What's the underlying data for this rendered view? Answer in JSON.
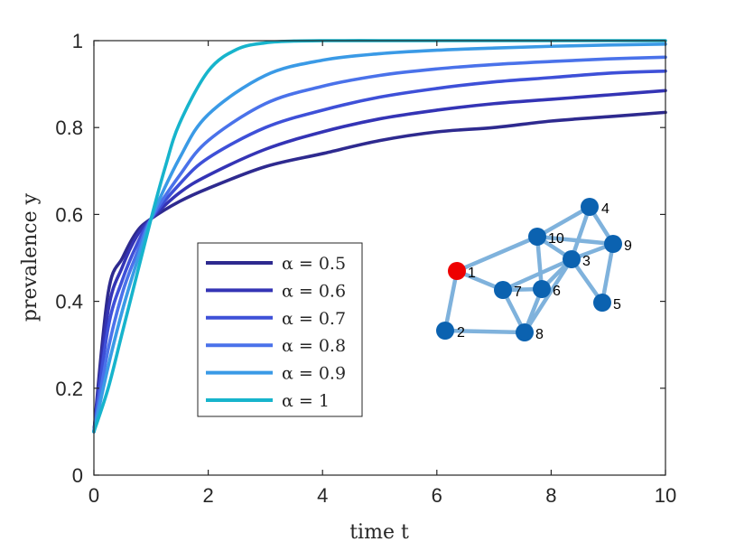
{
  "chart_data": {
    "type": "line",
    "xlabel": "time t",
    "ylabel": "prevalence y",
    "xlim": [
      0,
      10
    ],
    "ylim": [
      0,
      1
    ],
    "xticks": [
      "0",
      "2",
      "4",
      "6",
      "8",
      "10"
    ],
    "yticks": [
      "0",
      "0.2",
      "0.4",
      "0.6",
      "0.8",
      "1"
    ],
    "grid": false,
    "legend_position": "center-left",
    "series": [
      {
        "name": "α = 0.5",
        "color": "#2e2a8f",
        "x": [
          0,
          0.25,
          0.5,
          0.75,
          1,
          1.5,
          2,
          3,
          4,
          5,
          6,
          7,
          8,
          9,
          10
        ],
        "y": [
          0.1,
          0.42,
          0.5,
          0.56,
          0.59,
          0.63,
          0.66,
          0.71,
          0.74,
          0.77,
          0.79,
          0.8,
          0.815,
          0.825,
          0.835
        ]
      },
      {
        "name": "α = 0.6",
        "color": "#3434b5",
        "x": [
          0,
          0.25,
          0.5,
          0.75,
          1,
          1.5,
          2,
          3,
          4,
          5,
          6,
          7,
          8,
          9,
          10
        ],
        "y": [
          0.1,
          0.38,
          0.48,
          0.55,
          0.59,
          0.65,
          0.69,
          0.75,
          0.79,
          0.82,
          0.84,
          0.855,
          0.865,
          0.875,
          0.885
        ]
      },
      {
        "name": "α = 0.7",
        "color": "#3e50d8",
        "x": [
          0,
          0.25,
          0.5,
          0.75,
          1,
          1.5,
          2,
          3,
          4,
          5,
          6,
          7,
          8,
          9,
          10
        ],
        "y": [
          0.1,
          0.34,
          0.45,
          0.53,
          0.59,
          0.67,
          0.73,
          0.8,
          0.84,
          0.87,
          0.89,
          0.905,
          0.915,
          0.925,
          0.93
        ]
      },
      {
        "name": "α = 0.8",
        "color": "#4a72ea",
        "x": [
          0,
          0.25,
          0.5,
          0.75,
          1,
          1.5,
          2,
          3,
          4,
          5,
          6,
          7,
          8,
          9,
          10
        ],
        "y": [
          0.1,
          0.29,
          0.42,
          0.51,
          0.59,
          0.69,
          0.77,
          0.855,
          0.895,
          0.92,
          0.935,
          0.945,
          0.952,
          0.958,
          0.962
        ]
      },
      {
        "name": "α = 0.9",
        "color": "#3a9ae6",
        "x": [
          0,
          0.25,
          0.5,
          0.75,
          1,
          1.5,
          2,
          3,
          4,
          5,
          6,
          7,
          8,
          9,
          10
        ],
        "y": [
          0.1,
          0.25,
          0.38,
          0.49,
          0.59,
          0.73,
          0.83,
          0.92,
          0.955,
          0.97,
          0.978,
          0.983,
          0.987,
          0.99,
          0.992
        ]
      },
      {
        "name": "α = 1",
        "color": "#17b4cc",
        "x": [
          0,
          0.25,
          0.5,
          0.75,
          1,
          1.25,
          1.5,
          2,
          2.5,
          3,
          3.5,
          4,
          5,
          6,
          8,
          10
        ],
        "y": [
          0.1,
          0.2,
          0.33,
          0.46,
          0.59,
          0.71,
          0.81,
          0.93,
          0.98,
          0.995,
          0.999,
          1.0,
          1.0,
          1.0,
          1.0,
          1.0
        ]
      }
    ],
    "inset_network": {
      "node_color": "#0b62b0",
      "highlight_color": "#ee0000",
      "edge_color": "#7fb2dc",
      "nodes": [
        {
          "label": "1",
          "highlight": true
        },
        {
          "label": "2",
          "highlight": false
        },
        {
          "label": "3",
          "highlight": false
        },
        {
          "label": "4",
          "highlight": false
        },
        {
          "label": "5",
          "highlight": false
        },
        {
          "label": "6",
          "highlight": false
        },
        {
          "label": "7",
          "highlight": false
        },
        {
          "label": "8",
          "highlight": false
        },
        {
          "label": "9",
          "highlight": false
        },
        {
          "label": "10",
          "highlight": false
        }
      ],
      "edges": [
        [
          "1",
          "2"
        ],
        [
          "1",
          "7"
        ],
        [
          "1",
          "10"
        ],
        [
          "2",
          "8"
        ],
        [
          "7",
          "8"
        ],
        [
          "7",
          "6"
        ],
        [
          "7",
          "3"
        ],
        [
          "6",
          "8"
        ],
        [
          "6",
          "10"
        ],
        [
          "6",
          "3"
        ],
        [
          "8",
          "3"
        ],
        [
          "10",
          "3"
        ],
        [
          "10",
          "4"
        ],
        [
          "10",
          "9"
        ],
        [
          "3",
          "4"
        ],
        [
          "3",
          "9"
        ],
        [
          "3",
          "5"
        ],
        [
          "4",
          "9"
        ],
        [
          "9",
          "5"
        ]
      ]
    }
  }
}
